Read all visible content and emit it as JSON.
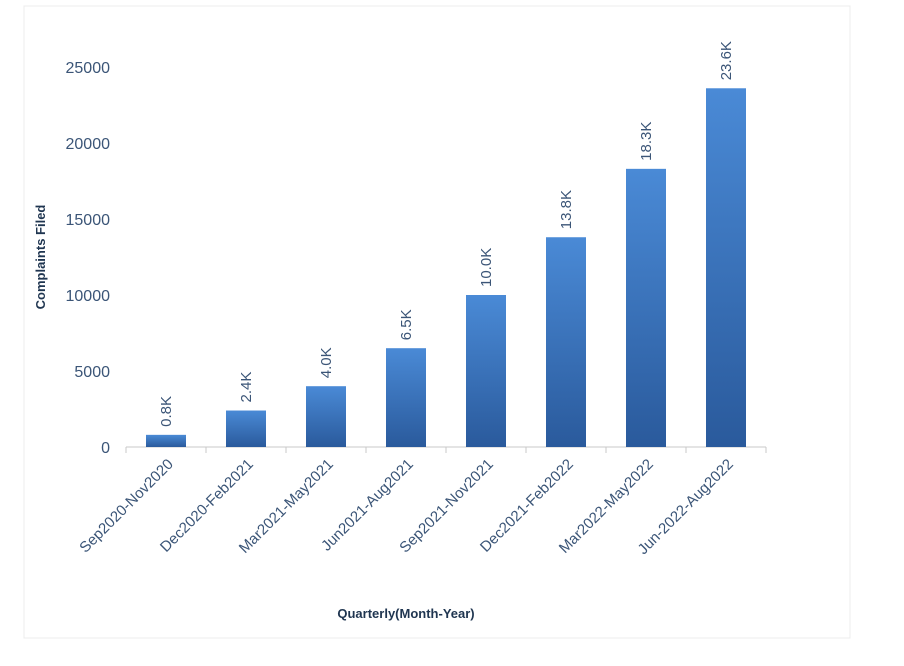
{
  "chart_data": {
    "type": "bar",
    "title": "",
    "xlabel": "Quarterly(Month-Year)",
    "ylabel": "Complaints Filed",
    "ylim": [
      0,
      25000
    ],
    "yticks": [
      0,
      5000,
      10000,
      15000,
      20000,
      25000
    ],
    "grid": false,
    "legend": "none",
    "categories": [
      "Sep2020-Nov2020",
      "Dec2020-Feb2021",
      "Mar2021-May2021",
      "Jun2021-Aug2021",
      "Sep2021-Nov2021",
      "Dec2021-Feb2022",
      "Mar2022-May2022",
      "Jun-2022-Aug2022"
    ],
    "values": [
      800,
      2400,
      4000,
      6500,
      10000,
      13800,
      18300,
      23600
    ],
    "data_labels": [
      "0.8K",
      "2.4K",
      "4.0K",
      "6.5K",
      "10.0K",
      "13.8K",
      "18.3K",
      "23.6K"
    ],
    "colors": {
      "bar_light": "#4a8ad6",
      "bar_dark": "#2a5a9c",
      "axis": "#c8c8c8",
      "text": "#3b5577"
    }
  }
}
